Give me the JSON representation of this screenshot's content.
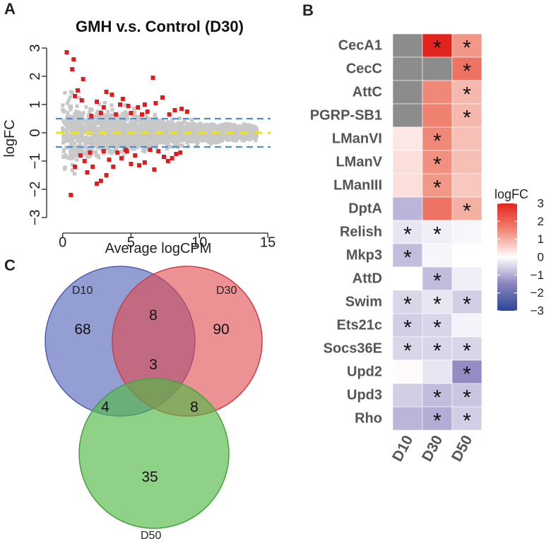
{
  "panels": {
    "a": "A",
    "b": "B",
    "c": "C"
  },
  "chart_data": [
    {
      "type": "scatter",
      "panel": "A",
      "title": "GMH v.s. Control (D30)",
      "xlabel": "Average logCPM",
      "ylabel": "logFC",
      "xlim": [
        -0.5,
        15.2
      ],
      "ylim": [
        -3.25,
        3.25
      ],
      "xticks": [
        "0",
        "5",
        "10",
        "15"
      ],
      "yticks": [
        "3",
        "2",
        "1",
        "0",
        "−1",
        "−2",
        "−3"
      ],
      "hlines": [
        {
          "y": 0.5,
          "color": "#4a8fd4",
          "style": "dashed"
        },
        {
          "y": -0.5,
          "color": "#4a8fd4",
          "style": "dashed"
        },
        {
          "y": 0,
          "color": "#f2e600",
          "style": "dashed"
        }
      ],
      "series": [
        {
          "name": "not significant",
          "color": "#c8c8c8",
          "description": "dense cloud of grey points, logFC spread widest at low logCPM and narrowing toward logCPM ~14"
        },
        {
          "name": "significant",
          "color": "#e41a1c",
          "points": [
            [
              0.3,
              2.85
            ],
            [
              0.8,
              2.6
            ],
            [
              0.7,
              2.25
            ],
            [
              1.5,
              1.9
            ],
            [
              1.1,
              1.5
            ],
            [
              0.9,
              1.3
            ],
            [
              1.4,
              1.15
            ],
            [
              6.6,
              1.95
            ],
            [
              2.5,
              1.1
            ],
            [
              3.2,
              1.45
            ],
            [
              3.6,
              1.35
            ],
            [
              3.0,
              0.9
            ],
            [
              4.2,
              1.0
            ],
            [
              4.8,
              0.95
            ],
            [
              5.5,
              0.9
            ],
            [
              6.0,
              1.0
            ],
            [
              6.8,
              1.05
            ],
            [
              7.3,
              1.25
            ],
            [
              8.2,
              0.8
            ],
            [
              8.7,
              0.85
            ],
            [
              9.1,
              0.75
            ],
            [
              5.0,
              0.7
            ],
            [
              6.2,
              0.75
            ],
            [
              2.8,
              0.7
            ],
            [
              3.9,
              0.65
            ],
            [
              4.4,
              1.2
            ],
            [
              7.8,
              0.65
            ],
            [
              2.1,
              0.6
            ],
            [
              5.8,
              0.65
            ],
            [
              0.6,
              -2.2
            ],
            [
              0.9,
              -1.2
            ],
            [
              1.6,
              -1.0
            ],
            [
              2.2,
              -1.2
            ],
            [
              2.5,
              -1.8
            ],
            [
              2.8,
              -1.7
            ],
            [
              3.2,
              -1.5
            ],
            [
              3.7,
              -1.2
            ],
            [
              4.3,
              -0.9
            ],
            [
              5.0,
              -1.1
            ],
            [
              5.6,
              -1.15
            ],
            [
              6.0,
              -1.05
            ],
            [
              6.7,
              -1.3
            ],
            [
              7.4,
              -0.85
            ],
            [
              8.0,
              -0.9
            ],
            [
              8.6,
              -0.7
            ],
            [
              1.3,
              -0.8
            ],
            [
              2.0,
              -0.7
            ],
            [
              3.0,
              -0.65
            ],
            [
              3.4,
              -0.95
            ],
            [
              4.0,
              -0.7
            ],
            [
              4.7,
              -0.65
            ],
            [
              5.3,
              -0.8
            ],
            [
              6.4,
              -0.6
            ],
            [
              7.0,
              -0.65
            ],
            [
              8.3,
              -0.75
            ],
            [
              1.8,
              -1.4
            ],
            [
              4.6,
              -0.6
            ],
            [
              7.7,
              -1.0
            ]
          ]
        }
      ]
    },
    {
      "type": "heatmap",
      "panel": "B",
      "legend_title": "logFC",
      "legend_ticks": [
        "3",
        "2",
        "1",
        "0",
        "−1",
        "−2",
        "−3"
      ],
      "scale": [
        -3,
        3
      ],
      "na_color": "#8c8c8c",
      "columns": [
        "D10",
        "D30",
        "D50"
      ],
      "rows": [
        {
          "gene": "CecA1",
          "values": [
            null,
            3.0,
            1.3
          ],
          "sig": [
            "",
            "*",
            "*"
          ]
        },
        {
          "gene": "CecC",
          "values": [
            null,
            null,
            1.8
          ],
          "sig": [
            "",
            "",
            "*"
          ]
        },
        {
          "gene": "AttC",
          "values": [
            null,
            1.5,
            0.9
          ],
          "sig": [
            "",
            "",
            "*"
          ]
        },
        {
          "gene": "PGRP-SB1",
          "values": [
            null,
            1.6,
            0.9
          ],
          "sig": [
            "",
            "",
            "*"
          ]
        },
        {
          "gene": "LManVI",
          "values": [
            0.3,
            1.5,
            0.8
          ],
          "sig": [
            "",
            "*",
            ""
          ]
        },
        {
          "gene": "LManV",
          "values": [
            0.4,
            1.4,
            0.8
          ],
          "sig": [
            "",
            "*",
            ""
          ]
        },
        {
          "gene": "LManIII",
          "values": [
            0.4,
            1.3,
            0.7
          ],
          "sig": [
            "",
            "*",
            ""
          ]
        },
        {
          "gene": "DptA",
          "values": [
            -0.9,
            1.8,
            1.0
          ],
          "sig": [
            "",
            "",
            "*"
          ]
        },
        {
          "gene": "Relish",
          "values": [
            -0.3,
            -0.2,
            -0.1
          ],
          "sig": [
            "*",
            "*",
            ""
          ]
        },
        {
          "gene": "Mkp3",
          "values": [
            -0.8,
            -0.1,
            0.0
          ],
          "sig": [
            "*",
            "",
            ""
          ]
        },
        {
          "gene": "AttD",
          "values": [
            0.0,
            -0.8,
            -0.2
          ],
          "sig": [
            "",
            "*",
            ""
          ]
        },
        {
          "gene": "Swim",
          "values": [
            -0.5,
            -0.3,
            -0.6
          ],
          "sig": [
            "*",
            "*",
            "*"
          ]
        },
        {
          "gene": "Ets21c",
          "values": [
            -0.6,
            -0.5,
            -0.15
          ],
          "sig": [
            "*",
            "*",
            ""
          ]
        },
        {
          "gene": "Socs36E",
          "values": [
            -0.5,
            -0.5,
            -0.5
          ],
          "sig": [
            "*",
            "*",
            "*"
          ]
        },
        {
          "gene": "Upd2",
          "values": [
            0.05,
            -0.3,
            -1.4
          ],
          "sig": [
            "",
            "",
            "*"
          ]
        },
        {
          "gene": "Upd3",
          "values": [
            -0.6,
            -0.8,
            -0.7
          ],
          "sig": [
            "",
            "*",
            "*"
          ]
        },
        {
          "gene": "Rho",
          "values": [
            -0.9,
            -1.0,
            -0.6
          ],
          "sig": [
            "",
            "*",
            "*"
          ]
        }
      ]
    },
    {
      "type": "venn",
      "panel": "C",
      "sets": [
        {
          "name": "D10",
          "color": "#6a78c2"
        },
        {
          "name": "D30",
          "color": "#e0474c"
        },
        {
          "name": "D50",
          "color": "#54b848"
        }
      ],
      "regions": {
        "D10_only": "68",
        "D30_only": "90",
        "D50_only": "35",
        "D10_D30": "8",
        "D10_D50": "4",
        "D30_D50": "8",
        "all": "3"
      }
    }
  ]
}
